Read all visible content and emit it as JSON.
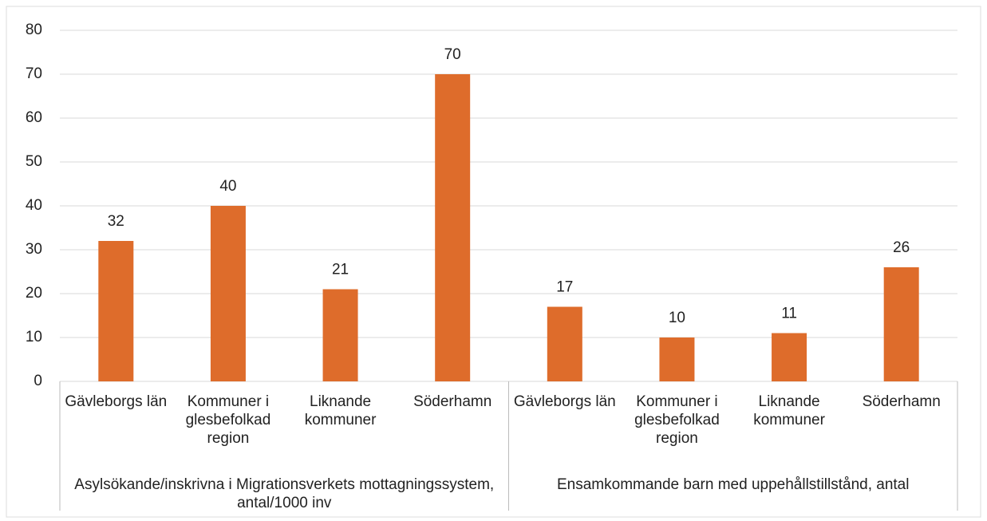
{
  "chart_data": {
    "type": "bar",
    "color": "#de6c2b",
    "ylim": [
      0,
      80
    ],
    "yticks": [
      0,
      10,
      20,
      30,
      40,
      50,
      60,
      70,
      80
    ],
    "grid": true,
    "groups": [
      {
        "name": "Asylsökande/inskrivna i Migrationsverkets mottagningssystem, antal/1000 inv",
        "categories": [
          "Gävleborgs län",
          "Kommuner i glesbefolkad region",
          "Liknande kommuner",
          "Söderhamn"
        ],
        "values": [
          32,
          40,
          21,
          70
        ]
      },
      {
        "name": "Ensamkommande barn med uppehållstillstånd, antal",
        "categories": [
          "Gävleborgs län",
          "Kommuner i glesbefolkad region",
          "Liknande kommuner",
          "Söderhamn"
        ],
        "values": [
          17,
          10,
          11,
          26
        ]
      }
    ]
  }
}
